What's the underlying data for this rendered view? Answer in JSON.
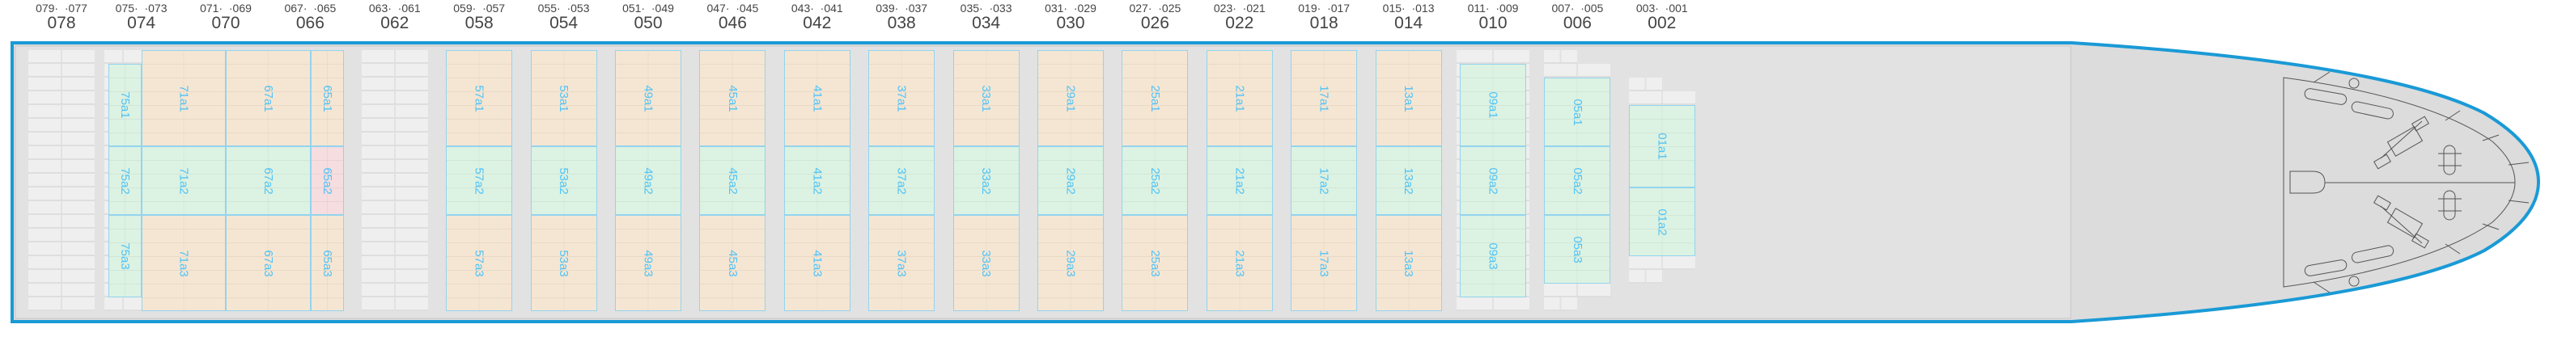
{
  "colors": {
    "hull_outline": "#1a9ad6",
    "hull_fill": "#dcdcdc",
    "empty_slot": "#efefef",
    "hatch_orange": "#f5e6d3",
    "hatch_green": "#dcf2e2",
    "hatch_pink": "#f5dde0",
    "hatch_border": "#93d4ee",
    "hatch_text": "#4fc3f7"
  },
  "bays": [
    {
      "range": "079·  ·077",
      "number": "078",
      "hatches": []
    },
    {
      "range": "075·  ·073",
      "number": "074",
      "hatches": [
        {
          "label": "75a1",
          "status": "green"
        },
        {
          "label": "75a2",
          "status": "green"
        },
        {
          "label": "75a3",
          "status": "green"
        }
      ]
    },
    {
      "range": "071·  ·069",
      "number": "070",
      "hatches": [
        {
          "label": "71a1",
          "status": "orange"
        },
        {
          "label": "71a2",
          "status": "green"
        },
        {
          "label": "71a3",
          "status": "orange"
        }
      ]
    },
    {
      "range": "067·  ·065",
      "number": "066",
      "hatches": [
        {
          "label": "67a1",
          "status": "orange"
        },
        {
          "label": "67a2",
          "status": "green"
        },
        {
          "label": "67a3",
          "status": "orange"
        },
        {
          "label": "65a1",
          "status": "orange"
        },
        {
          "label": "65a2",
          "status": "pink"
        },
        {
          "label": "65a3",
          "status": "orange"
        }
      ]
    },
    {
      "range": "063·  ·061",
      "number": "062",
      "hatches": []
    },
    {
      "range": "059·  ·057",
      "number": "058",
      "hatches": [
        {
          "label": "57a1",
          "status": "orange"
        },
        {
          "label": "57a2",
          "status": "green"
        },
        {
          "label": "57a3",
          "status": "orange"
        }
      ]
    },
    {
      "range": "055·  ·053",
      "number": "054",
      "hatches": [
        {
          "label": "53a1",
          "status": "orange"
        },
        {
          "label": "53a2",
          "status": "green"
        },
        {
          "label": "53a3",
          "status": "orange"
        }
      ]
    },
    {
      "range": "051·  ·049",
      "number": "050",
      "hatches": [
        {
          "label": "49a1",
          "status": "orange"
        },
        {
          "label": "49a2",
          "status": "green"
        },
        {
          "label": "49a3",
          "status": "orange"
        }
      ]
    },
    {
      "range": "047·  ·045",
      "number": "046",
      "hatches": [
        {
          "label": "45a1",
          "status": "orange"
        },
        {
          "label": "45a2",
          "status": "green"
        },
        {
          "label": "45a3",
          "status": "orange"
        }
      ]
    },
    {
      "range": "043·  ·041",
      "number": "042",
      "hatches": [
        {
          "label": "41a1",
          "status": "orange"
        },
        {
          "label": "41a2",
          "status": "green"
        },
        {
          "label": "41a3",
          "status": "orange"
        }
      ]
    },
    {
      "range": "039·  ·037",
      "number": "038",
      "hatches": [
        {
          "label": "37a1",
          "status": "orange"
        },
        {
          "label": "37a2",
          "status": "green"
        },
        {
          "label": "37a3",
          "status": "orange"
        }
      ]
    },
    {
      "range": "035·  ·033",
      "number": "034",
      "hatches": [
        {
          "label": "33a1",
          "status": "orange"
        },
        {
          "label": "33a2",
          "status": "green"
        },
        {
          "label": "33a3",
          "status": "orange"
        }
      ]
    },
    {
      "range": "031·  ·029",
      "number": "030",
      "hatches": [
        {
          "label": "29a1",
          "status": "orange"
        },
        {
          "label": "29a2",
          "status": "green"
        },
        {
          "label": "29a3",
          "status": "orange"
        }
      ]
    },
    {
      "range": "027·  ·025",
      "number": "026",
      "hatches": [
        {
          "label": "25a1",
          "status": "orange"
        },
        {
          "label": "25a2",
          "status": "green"
        },
        {
          "label": "25a3",
          "status": "orange"
        }
      ]
    },
    {
      "range": "023·  ·021",
      "number": "022",
      "hatches": [
        {
          "label": "21a1",
          "status": "orange"
        },
        {
          "label": "21a2",
          "status": "green"
        },
        {
          "label": "21a3",
          "status": "orange"
        }
      ]
    },
    {
      "range": "019·  ·017",
      "number": "018",
      "hatches": [
        {
          "label": "17a1",
          "status": "orange"
        },
        {
          "label": "17a2",
          "status": "green"
        },
        {
          "label": "17a3",
          "status": "orange"
        }
      ]
    },
    {
      "range": "015·  ·013",
      "number": "014",
      "hatches": [
        {
          "label": "13a1",
          "status": "orange"
        },
        {
          "label": "13a2",
          "status": "green"
        },
        {
          "label": "13a3",
          "status": "orange"
        }
      ]
    },
    {
      "range": "011·  ·009",
      "number": "010",
      "hatches": [
        {
          "label": "09a1",
          "status": "green"
        },
        {
          "label": "09a2",
          "status": "green"
        },
        {
          "label": "09a3",
          "status": "green"
        }
      ]
    },
    {
      "range": "007·  ·005",
      "number": "006",
      "hatches": [
        {
          "label": "05a1",
          "status": "green"
        },
        {
          "label": "05a2",
          "status": "green"
        },
        {
          "label": "05a3",
          "status": "green"
        }
      ]
    },
    {
      "range": "003·  ·001",
      "number": "002",
      "hatches": [
        {
          "label": "01a1",
          "status": "green"
        },
        {
          "label": "01a2",
          "status": "green"
        }
      ]
    }
  ]
}
